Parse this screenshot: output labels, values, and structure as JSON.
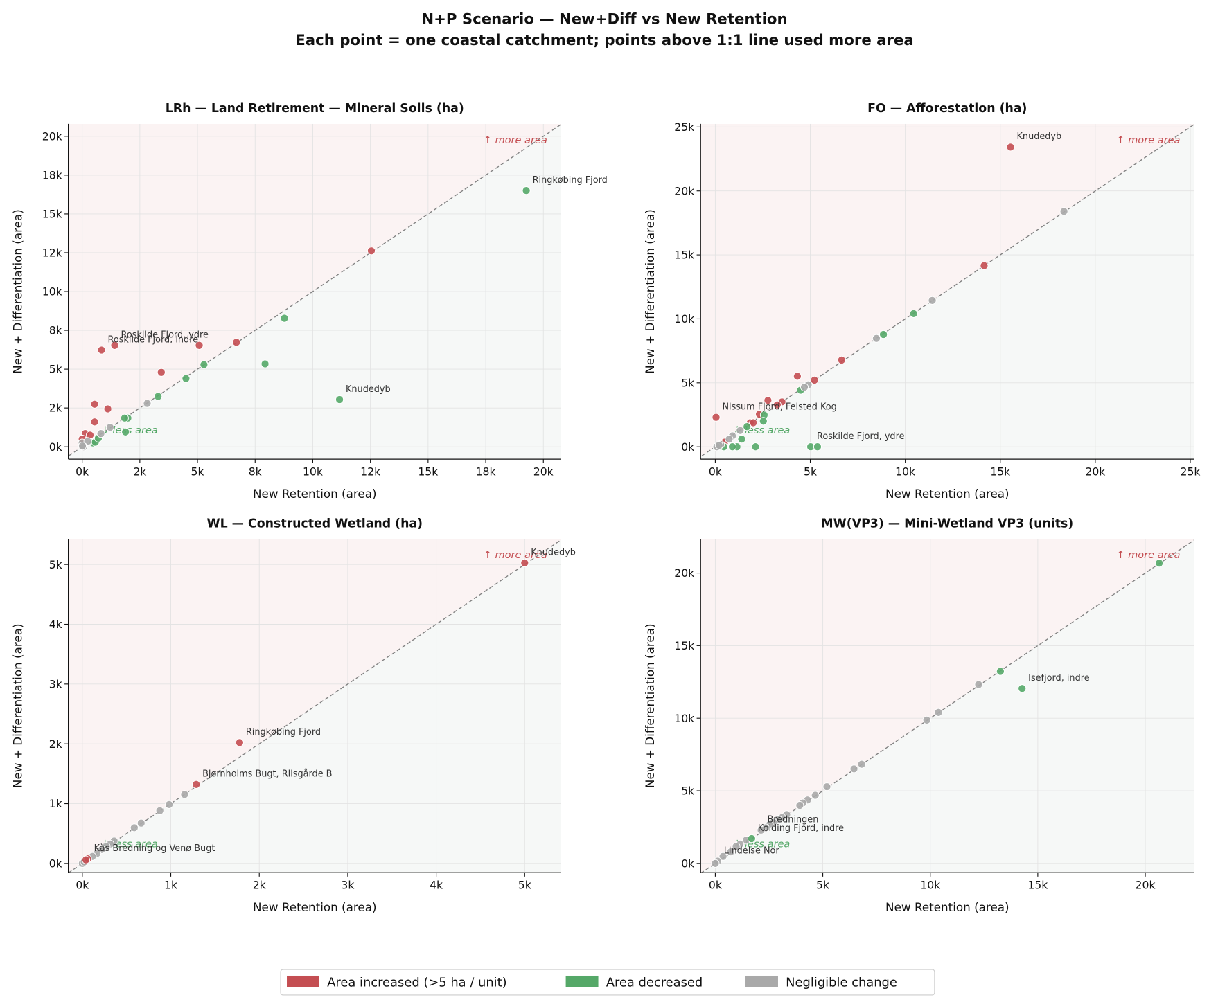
{
  "title": "N+P Scenario — New+Diff vs New Retention",
  "subtitle": "Each point = one coastal catchment; points above 1:1 line used more area",
  "legend": [
    {
      "name": "Area increased (>5 ha / unit)",
      "color": "#c44e52"
    },
    {
      "name": "Area decreased",
      "color": "#55a868"
    },
    {
      "name": "Negligible change",
      "color": "#a9a9a9"
    }
  ],
  "chart_data": [
    {
      "type": "scatter",
      "title": "LRh — Land Retirement — Mineral Soils (ha)",
      "xlabel": "New Retention (area)",
      "ylabel": "New + Differentiation (area)",
      "xlim": [
        -600,
        20770
      ],
      "ylim": [
        -800,
        20800
      ],
      "grid": true,
      "xticks": [
        {
          "value": 0,
          "label": "0k"
        },
        {
          "value": 2500,
          "label": "2k"
        },
        {
          "value": 5000,
          "label": "5k"
        },
        {
          "value": 7500,
          "label": "8k"
        },
        {
          "value": 10000,
          "label": "10k"
        },
        {
          "value": 12500,
          "label": "12k"
        },
        {
          "value": 15000,
          "label": "15k"
        },
        {
          "value": 17500,
          "label": "18k"
        },
        {
          "value": 20000,
          "label": "20k"
        }
      ],
      "yticks": [
        {
          "value": 0,
          "label": "0k"
        },
        {
          "value": 2500,
          "label": "2k"
        },
        {
          "value": 5000,
          "label": "5k"
        },
        {
          "value": 7500,
          "label": "8k"
        },
        {
          "value": 10000,
          "label": "10k"
        },
        {
          "value": 12500,
          "label": "12k"
        },
        {
          "value": 15000,
          "label": "15k"
        },
        {
          "value": 17500,
          "label": "18k"
        },
        {
          "value": 20000,
          "label": "20k"
        }
      ],
      "upper_note": "↑ more area",
      "lower_note": "↓ less area",
      "series": [
        {
          "color": "#c44e52",
          "x": [
            12540,
            6690,
            5075,
            1410,
            840,
            3430,
            540,
            1110,
            540,
            130,
            340,
            0
          ],
          "y": [
            12620,
            6730,
            6530,
            6530,
            6230,
            4790,
            2740,
            2440,
            1600,
            850,
            750,
            500
          ]
        },
        {
          "color": "#55a868",
          "x": [
            19260,
            8770,
            7930,
            11160,
            5280,
            4500,
            3290,
            1980,
            1840,
            1880,
            470,
            570,
            700
          ],
          "y": [
            16510,
            8280,
            5340,
            3040,
            5290,
            4390,
            3240,
            1850,
            1850,
            950,
            250,
            300,
            550
          ]
        },
        {
          "color": "#a9a9a9",
          "x": [
            2820,
            1210,
            810,
            0,
            240,
            60,
            10
          ],
          "y": [
            2790,
            1250,
            850,
            250,
            350,
            0,
            50
          ]
        }
      ],
      "annotations": [
        {
          "text": "Ringkøbing Fjord",
          "x": 19260,
          "y": 16510
        },
        {
          "text": "Knudedyb",
          "x": 11160,
          "y": 3040
        },
        {
          "text": "Roskilde Fjord, indre",
          "x": 840,
          "y": 6230
        },
        {
          "text": "Roskilde Fjord, ydre",
          "x": 1410,
          "y": 6530
        }
      ]
    },
    {
      "type": "scatter",
      "title": "FO — Afforestation (ha)",
      "xlabel": "New Retention (area)",
      "ylabel": "New + Differentiation (area)",
      "xlim": [
        -775,
        25200
      ],
      "ylim": [
        -970,
        25240
      ],
      "grid": true,
      "xticks": [
        {
          "value": 0,
          "label": "0k"
        },
        {
          "value": 5000,
          "label": "5k"
        },
        {
          "value": 10000,
          "label": "10k"
        },
        {
          "value": 15000,
          "label": "15k"
        },
        {
          "value": 20000,
          "label": "20k"
        },
        {
          "value": 25000,
          "label": "25k"
        }
      ],
      "yticks": [
        {
          "value": 0,
          "label": "0k"
        },
        {
          "value": 5000,
          "label": "5k"
        },
        {
          "value": 10000,
          "label": "10k"
        },
        {
          "value": 15000,
          "label": "15k"
        },
        {
          "value": 20000,
          "label": "20k"
        },
        {
          "value": 25000,
          "label": "25k"
        }
      ],
      "upper_note": "↑ more area",
      "lower_note": "↓ less area",
      "series": [
        {
          "color": "#c44e52",
          "x": [
            15540,
            14150,
            6650,
            5220,
            4320,
            2770,
            3510,
            3260,
            2320,
            1840,
            2000,
            40,
            490
          ],
          "y": [
            23430,
            14160,
            6780,
            5210,
            5510,
            3630,
            3510,
            3270,
            2540,
            1880,
            1880,
            2300,
            360
          ]
        },
        {
          "color": "#55a868",
          "x": [
            10440,
            8850,
            4490,
            2570,
            2530,
            1670,
            1390,
            2120,
            1140,
            900,
            450,
            5020,
            5380
          ],
          "y": [
            10410,
            8780,
            4420,
            2480,
            2000,
            1570,
            600,
            0,
            0,
            0,
            0,
            0,
            0
          ]
        },
        {
          "color": "#a9a9a9",
          "x": [
            18350,
            11420,
            8480,
            4890,
            4690,
            1310,
            900,
            730,
            280,
            80,
            200
          ],
          "y": [
            18400,
            11440,
            8470,
            4840,
            4660,
            1270,
            850,
            600,
            180,
            0,
            120
          ]
        }
      ],
      "annotations": [
        {
          "text": "Knudedyb",
          "x": 15540,
          "y": 23430
        },
        {
          "text": "Nissum Fjord, Felsted Kog",
          "x": 40,
          "y": 2300
        },
        {
          "text": "Roskilde Fjord, ydre",
          "x": 5020,
          "y": 0
        }
      ]
    },
    {
      "type": "scatter",
      "title": "WL — Constructed Wetland (ha)",
      "xlabel": "New Retention (area)",
      "ylabel": "New + Differentiation (area)",
      "xlim": [
        -158,
        5412
      ],
      "ylim": [
        -155,
        5427
      ],
      "grid": true,
      "xticks": [
        {
          "value": 0,
          "label": "0k"
        },
        {
          "value": 1000,
          "label": "1k"
        },
        {
          "value": 2000,
          "label": "2k"
        },
        {
          "value": 3000,
          "label": "3k"
        },
        {
          "value": 4000,
          "label": "4k"
        },
        {
          "value": 5000,
          "label": "5k"
        }
      ],
      "yticks": [
        {
          "value": 0,
          "label": "0k"
        },
        {
          "value": 1000,
          "label": "1k"
        },
        {
          "value": 2000,
          "label": "2k"
        },
        {
          "value": 3000,
          "label": "3k"
        },
        {
          "value": 4000,
          "label": "4k"
        },
        {
          "value": 5000,
          "label": "5k"
        }
      ],
      "upper_note": "↑ more area",
      "lower_note": "↓ less area",
      "series": [
        {
          "color": "#a9a9a9",
          "x": [
            1156,
            981,
            876,
            665,
            587,
            359,
            315,
            271,
            219,
            166,
            114,
            0,
            20
          ],
          "y": [
            1153,
            984,
            881,
            674,
            596,
            376,
            324,
            285,
            233,
            168,
            117,
            0,
            25
          ]
        },
        {
          "color": "#c44e52",
          "x": [
            5000,
            1778,
            1287,
            61,
            40
          ],
          "y": [
            5026,
            2021,
            1321,
            78,
            60
          ]
        }
      ],
      "annotations": [
        {
          "text": "Knudedyb",
          "x": 5000,
          "y": 5026
        },
        {
          "text": "Ringkøbing Fjord",
          "x": 1778,
          "y": 2021
        },
        {
          "text": "Bjørnholms Bugt, Riisgårde B",
          "x": 1287,
          "y": 1321
        },
        {
          "text": "Kås Bredning og Venø Bugt",
          "x": 61,
          "y": 78
        }
      ]
    },
    {
      "type": "scatter",
      "title": "MW(VP3) — Mini-Wetland VP3 (units)",
      "xlabel": "New Retention (area)",
      "ylabel": "New + Differentiation (area)",
      "xlim": [
        -685,
        22270
      ],
      "ylim": [
        -640,
        22350
      ],
      "grid": true,
      "xticks": [
        {
          "value": 0,
          "label": "0k"
        },
        {
          "value": 5000,
          "label": "5k"
        },
        {
          "value": 10000,
          "label": "10k"
        },
        {
          "value": 15000,
          "label": "15k"
        },
        {
          "value": 20000,
          "label": "20k"
        }
      ],
      "yticks": [
        {
          "value": 0,
          "label": "0k"
        },
        {
          "value": 5000,
          "label": "5k"
        },
        {
          "value": 10000,
          "label": "10k"
        },
        {
          "value": 15000,
          "label": "15k"
        },
        {
          "value": 20000,
          "label": "20k"
        }
      ],
      "upper_note": "↑ more area",
      "lower_note": "↓ less area",
      "series": [
        {
          "color": "#a9a9a9",
          "x": [
            12250,
            10380,
            9840,
            6810,
            6450,
            5190,
            4650,
            4290,
            4070,
            3930,
            3320,
            3100,
            2920,
            2700,
            2520,
            2340,
            2130,
            1440,
            1150,
            970,
            720,
            360,
            110,
            0
          ],
          "y": [
            12320,
            10400,
            9870,
            6830,
            6510,
            5280,
            4690,
            4370,
            4160,
            4000,
            3360,
            3150,
            3040,
            2830,
            2670,
            2450,
            2290,
            1600,
            1330,
            1170,
            800,
            480,
            160,
            0
          ]
        },
        {
          "color": "#55a868",
          "x": [
            20650,
            13260,
            14270,
            1690
          ],
          "y": [
            20690,
            13230,
            12050,
            1710
          ]
        }
      ],
      "annotations": [
        {
          "text": "Isefjord, indre",
          "x": 14270,
          "y": 12050
        },
        {
          "text": "Bredningen",
          "x": 2130,
          "y": 2290
        },
        {
          "text": "Kolding Fjord, indre",
          "x": 1690,
          "y": 1710
        },
        {
          "text": "Lindelse Nor",
          "x": 110,
          "y": 160
        }
      ]
    }
  ]
}
